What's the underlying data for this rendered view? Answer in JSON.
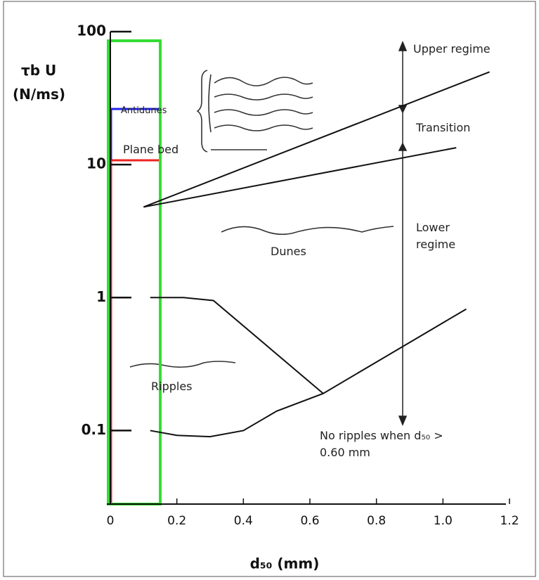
{
  "chart_data": {
    "type": "line",
    "y_label_line1": "τb U",
    "y_label_line2": "(N/ms)",
    "x_label": "d₅₀ (mm)",
    "log_y": true,
    "color": "#111111",
    "xlim": [
      0,
      1.2
    ],
    "xticks": [
      0,
      0.2,
      0.4,
      0.6,
      0.8,
      {
        "value": 1,
        "label": "1.0"
      },
      1.2
    ],
    "ylim": [
      0.028,
      100
    ],
    "yticks": [
      0.1,
      1,
      10,
      100
    ],
    "series": [
      {
        "x": [
          0.12,
          0.22,
          0.31,
          0.64
        ],
        "values": [
          1,
          1,
          0.95,
          0.19
        ]
      },
      {
        "x": [
          0.12,
          0.2,
          0.3,
          0.4,
          0.5,
          0.64,
          1.07
        ],
        "values": [
          0.1,
          0.092,
          0.09,
          0.1,
          0.14,
          0.19,
          0.82
        ]
      },
      {
        "x": [
          0.1,
          1.04
        ],
        "values": [
          4.8,
          13.4
        ]
      },
      {
        "x": [
          0.1,
          1.14
        ],
        "values": [
          4.8,
          49.8
        ]
      }
    ],
    "annotations": {
      "upper_regime": "Upper regime",
      "transition": "Transition",
      "lower_regime": "Lower regime",
      "dunes": "Dunes",
      "ripples": "Ripples",
      "plane_bed": "Plane bed",
      "antidunes": "Antidunes",
      "no_ripples": "No ripples when d₅₀ > 0.60 mm"
    }
  }
}
